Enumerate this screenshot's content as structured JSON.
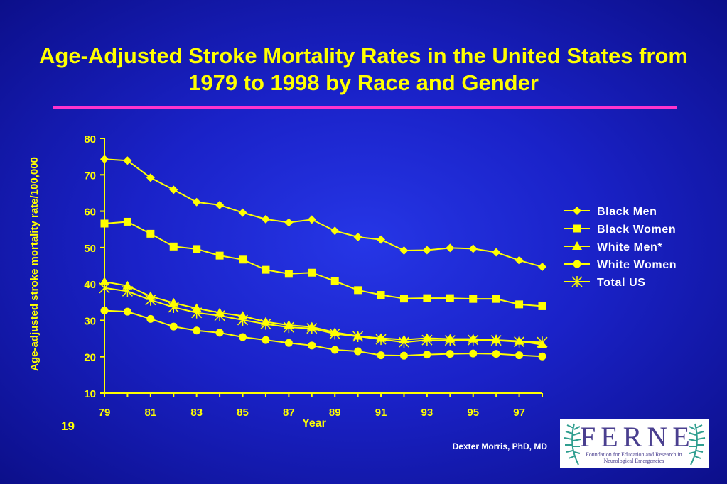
{
  "slide": {
    "title": "Age-Adjusted Stroke Mortality Rates in the United States from 1979 to 1998 by Race and Gender",
    "slide_number": "19",
    "credit": "Dexter Morris, PhD, MD"
  },
  "logo": {
    "word": "FERNE",
    "subtitle": "Foundation for Education and Research in Neurological Emergencies",
    "icon": "fern-leaf-icon"
  },
  "colors": {
    "background": "#1a22c8",
    "title": "#ffff00",
    "rule": "#ff33cc",
    "series": "#ffff00",
    "axis_text": "#ffff00",
    "legend_text": "#ffffff"
  },
  "chart_data": {
    "type": "line",
    "xlabel": "Year",
    "ylabel": "Age-adjusted stroke mortality rate/100,000",
    "x": [
      1979,
      1980,
      1981,
      1982,
      1983,
      1984,
      1985,
      1986,
      1987,
      1988,
      1989,
      1990,
      1991,
      1992,
      1993,
      1994,
      1995,
      1996,
      1997,
      1998
    ],
    "x_tick_labels": [
      "79",
      "81",
      "83",
      "85",
      "87",
      "89",
      "91",
      "93",
      "95",
      "97"
    ],
    "x_tick_years": [
      1979,
      1981,
      1983,
      1985,
      1987,
      1989,
      1991,
      1993,
      1995,
      1997
    ],
    "y_ticks": [
      10,
      20,
      30,
      40,
      50,
      60,
      70,
      80
    ],
    "ylim": [
      10,
      80
    ],
    "xlim": [
      1979,
      1998
    ],
    "grid": false,
    "legend_position": "right",
    "series": [
      {
        "name": "Black Men",
        "marker": "diamond",
        "values": [
          74.3,
          73.9,
          69.2,
          65.9,
          62.5,
          61.7,
          59.6,
          57.8,
          56.9,
          57.7,
          54.6,
          52.9,
          52.2,
          49.2,
          49.3,
          49.9,
          49.7,
          48.7,
          46.5,
          44.7
        ]
      },
      {
        "name": "Black Women",
        "marker": "square",
        "values": [
          56.6,
          57.1,
          53.8,
          50.3,
          49.6,
          47.8,
          46.7,
          43.9,
          42.8,
          43.1,
          40.8,
          38.3,
          37.0,
          36.0,
          36.1,
          36.1,
          35.9,
          35.9,
          34.4,
          33.9
        ]
      },
      {
        "name": "White Men*",
        "marker": "triangle",
        "values": [
          40.6,
          39.5,
          36.6,
          34.8,
          33.3,
          32.1,
          31.2,
          29.6,
          28.7,
          28.2,
          26.7,
          25.7,
          25.1,
          24.7,
          25.1,
          24.9,
          24.9,
          24.6,
          24.3,
          23.3
        ]
      },
      {
        "name": "White Women",
        "marker": "circle",
        "values": [
          32.7,
          32.4,
          30.4,
          28.3,
          27.2,
          26.6,
          25.4,
          24.6,
          23.8,
          23.1,
          21.9,
          21.5,
          20.4,
          20.3,
          20.6,
          20.8,
          20.9,
          20.8,
          20.4,
          20.1
        ]
      },
      {
        "name": "Total US",
        "marker": "asterisk",
        "values": [
          38.9,
          38.0,
          35.6,
          33.6,
          32.1,
          31.3,
          30.1,
          29.0,
          28.1,
          27.8,
          26.3,
          25.6,
          24.8,
          24.0,
          24.6,
          24.5,
          24.6,
          24.5,
          24.1,
          24.0
        ]
      }
    ]
  }
}
